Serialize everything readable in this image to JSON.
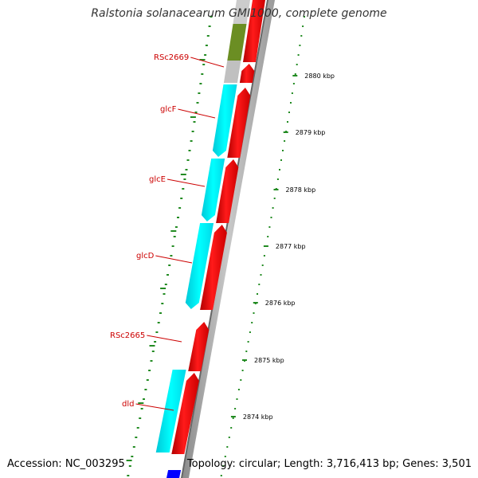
{
  "title": "Ralstonia solanacearum GMI1000, complete genome",
  "footer": {
    "accession": "Accession: NC_003295",
    "summary": "Topology: circular; Length: 3,716,413 bp; Genes: 3,501"
  },
  "colors": {
    "forward_cds": "#ff0000",
    "reverse_cds": "#00ffff",
    "gene_label": "#cc0000",
    "tick": "#228b22",
    "backbone": "#999999",
    "olive_feature": "#6b8e23",
    "grey_feature": "#bbbbbb",
    "blue_feature": "#0000ff"
  },
  "genes": [
    {
      "label": "RSc2669"
    },
    {
      "label": "glcF"
    },
    {
      "label": "glcE"
    },
    {
      "label": "glcD"
    },
    {
      "label": "RSc2665"
    },
    {
      "label": "dld"
    }
  ],
  "kbp_ticks": [
    "2880 kbp",
    "2879 kbp",
    "2878 kbp",
    "2877 kbp",
    "2876 kbp",
    "2875 kbp",
    "2874 kbp"
  ]
}
